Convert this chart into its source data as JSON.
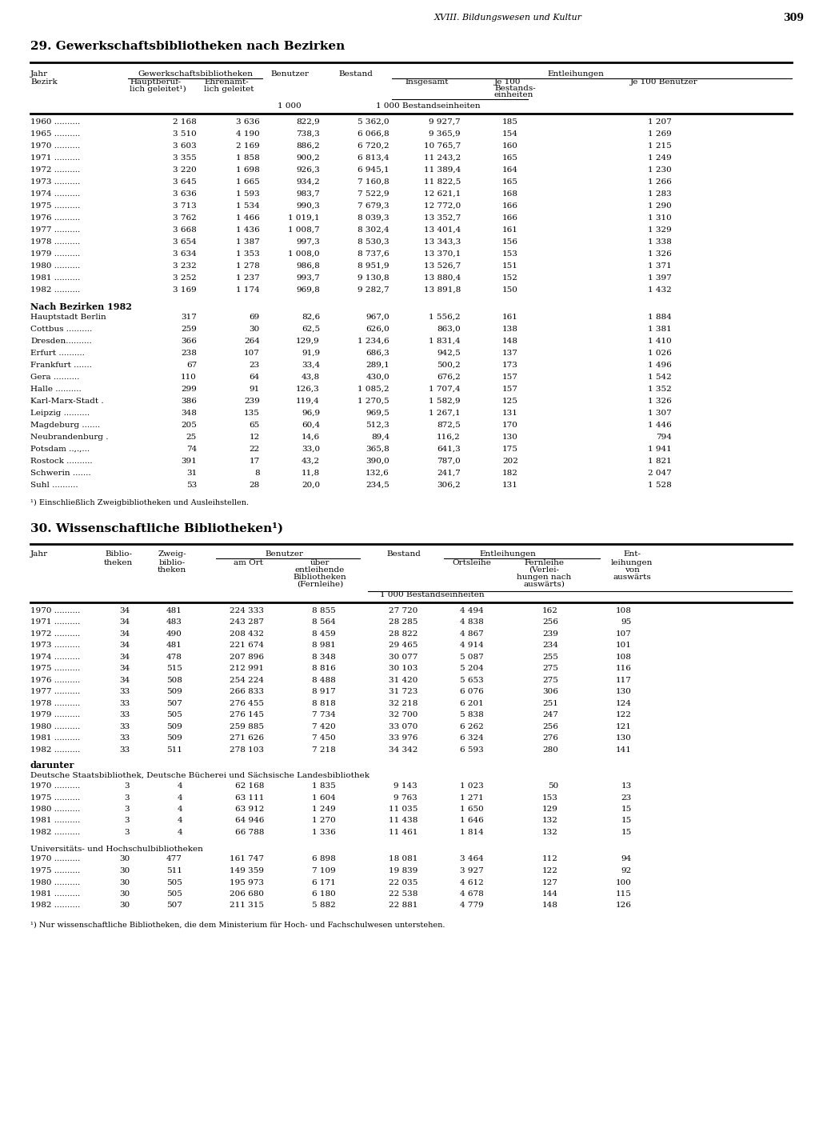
{
  "page_header": "XVIII. Bildungswesen und Kultur",
  "page_number": "309",
  "section29_title": "29. Gewerkschaftsbibliotheken nach Bezirken",
  "section30_title": "30. Wissenschaftliche Bibliotheken¹)",
  "bg_color": "#ffffff",
  "text_color": "#000000",
  "table1_years_data": [
    [
      "1960",
      "2 168",
      "3 636",
      "822,9",
      "5 362,0",
      "9 927,7",
      "185",
      "1 207"
    ],
    [
      "1965",
      "3 510",
      "4 190",
      "738,3",
      "6 066,8",
      "9 365,9",
      "154",
      "1 269"
    ],
    [
      "1970",
      "3 603",
      "2 169",
      "886,2",
      "6 720,2",
      "10 765,7",
      "160",
      "1 215"
    ],
    [
      "1971",
      "3 355",
      "1 858",
      "900,2",
      "6 813,4",
      "11 243,2",
      "165",
      "1 249"
    ],
    [
      "1972",
      "3 220",
      "1 698",
      "926,3",
      "6 945,1",
      "11 389,4",
      "164",
      "1 230"
    ],
    [
      "1973",
      "3 645",
      "1 665",
      "934,2",
      "7 160,8",
      "11 822,5",
      "165",
      "1 266"
    ],
    [
      "1974",
      "3 636",
      "1 593",
      "983,7",
      "7 522,9",
      "12 621,1",
      "168",
      "1 283"
    ],
    [
      "1975",
      "3 713",
      "1 534",
      "990,3",
      "7 679,3",
      "12 772,0",
      "166",
      "1 290"
    ],
    [
      "1976",
      "3 762",
      "1 466",
      "1 019,1",
      "8 039,3",
      "13 352,7",
      "166",
      "1 310"
    ],
    [
      "1977",
      "3 668",
      "1 436",
      "1 008,7",
      "8 302,4",
      "13 401,4",
      "161",
      "1 329"
    ],
    [
      "1978",
      "3 654",
      "1 387",
      "997,3",
      "8 530,3",
      "13 343,3",
      "156",
      "1 338"
    ],
    [
      "1979",
      "3 634",
      "1 353",
      "1 008,0",
      "8 737,6",
      "13 370,1",
      "153",
      "1 326"
    ],
    [
      "1980",
      "3 232",
      "1 278",
      "986,8",
      "8 951,9",
      "13 526,7",
      "151",
      "1 371"
    ],
    [
      "1981",
      "3 252",
      "1 237",
      "993,7",
      "9 130,8",
      "13 880,4",
      "152",
      "1 397"
    ],
    [
      "1982",
      "3 169",
      "1 174",
      "969,8",
      "9 282,7",
      "13 891,8",
      "150",
      "1 432"
    ]
  ],
  "bezirk_header": "Nach Bezirken 1982",
  "table1_bezirk_data": [
    [
      "Hauptstadt Berlin",
      "317",
      "69",
      "82,6",
      "967,0",
      "1 556,2",
      "161",
      "1 884"
    ],
    [
      "Cottbus",
      "259",
      "30",
      "62,5",
      "626,0",
      "863,0",
      "138",
      "1 381"
    ],
    [
      "Dresden",
      "366",
      "264",
      "129,9",
      "1 234,6",
      "1 831,4",
      "148",
      "1 410"
    ],
    [
      "Erfurt",
      "238",
      "107",
      "91,9",
      "686,3",
      "942,5",
      "137",
      "1 026"
    ],
    [
      "Frankfurt",
      "67",
      "23",
      "33,4",
      "289,1",
      "500,2",
      "173",
      "1 496"
    ],
    [
      "Gera",
      "110",
      "64",
      "43,8",
      "430,0",
      "676,2",
      "157",
      "1 542"
    ],
    [
      "Halle",
      "299",
      "91",
      "126,3",
      "1 085,2",
      "1 707,4",
      "157",
      "1 352"
    ],
    [
      "Karl-Marx-Stadt",
      "386",
      "239",
      "119,4",
      "1 270,5",
      "1 582,9",
      "125",
      "1 326"
    ],
    [
      "Leipzig",
      "348",
      "135",
      "96,9",
      "969,5",
      "1 267,1",
      "131",
      "1 307"
    ],
    [
      "Magdeburg",
      "205",
      "65",
      "60,4",
      "512,3",
      "872,5",
      "170",
      "1 446"
    ],
    [
      "Neubrandenburg",
      "25",
      "12",
      "14,6",
      "89,4",
      "116,2",
      "130",
      "794"
    ],
    [
      "Potsdam",
      "74",
      "22",
      "33,0",
      "365,8",
      "641,3",
      "175",
      "1 941"
    ],
    [
      "Rostock",
      "391",
      "17",
      "43,2",
      "390,0",
      "787,0",
      "202",
      "1 821"
    ],
    [
      "Schwerin",
      "31",
      "8",
      "11,8",
      "132,6",
      "241,7",
      "182",
      "2 047"
    ],
    [
      "Suhl",
      "53",
      "28",
      "20,0",
      "234,5",
      "306,2",
      "131",
      "1 528"
    ]
  ],
  "table1_footnote": "¹) Einschließlich Zweigbibliotheken und Ausleihstellen.",
  "table2_data": [
    [
      "1970",
      "34",
      "481",
      "224 333",
      "8 855",
      "27 720",
      "4 494",
      "162",
      "108"
    ],
    [
      "1971",
      "34",
      "483",
      "243 287",
      "8 564",
      "28 285",
      "4 838",
      "256",
      "95"
    ],
    [
      "1972",
      "34",
      "490",
      "208 432",
      "8 459",
      "28 822",
      "4 867",
      "239",
      "107"
    ],
    [
      "1973",
      "34",
      "481",
      "221 674",
      "8 981",
      "29 465",
      "4 914",
      "234",
      "101"
    ],
    [
      "1974",
      "34",
      "478",
      "207 896",
      "8 348",
      "30 077",
      "5 087",
      "255",
      "108"
    ],
    [
      "1975",
      "34",
      "515",
      "212 991",
      "8 816",
      "30 103",
      "5 204",
      "275",
      "116"
    ],
    [
      "1976",
      "34",
      "508",
      "254 224",
      "8 488",
      "31 420",
      "5 653",
      "275",
      "117"
    ],
    [
      "1977",
      "33",
      "509",
      "266 833",
      "8 917",
      "31 723",
      "6 076",
      "306",
      "130"
    ],
    [
      "1978",
      "33",
      "507",
      "276 455",
      "8 818",
      "32 218",
      "6 201",
      "251",
      "124"
    ],
    [
      "1979",
      "33",
      "505",
      "276 145",
      "7 734",
      "32 700",
      "5 838",
      "247",
      "122"
    ],
    [
      "1980",
      "33",
      "509",
      "259 885",
      "7 420",
      "33 070",
      "6 262",
      "256",
      "121"
    ],
    [
      "1981",
      "33",
      "509",
      "271 626",
      "7 450",
      "33 976",
      "6 324",
      "276",
      "130"
    ],
    [
      "1982",
      "33",
      "511",
      "278 103",
      "7 218",
      "34 342",
      "6 593",
      "280",
      "141"
    ]
  ],
  "table2_darunter_header": "darunter",
  "table2_dst_header": "Deutsche Staatsbibliothek, Deutsche Bücherei und Sächsische Landesbibliothek",
  "table2_dst_data": [
    [
      "1970",
      "3",
      "4",
      "62 168",
      "1 835",
      "9 143",
      "1 023",
      "50",
      "13"
    ],
    [
      "1975",
      "3",
      "4",
      "63 111",
      "1 604",
      "9 763",
      "1 271",
      "153",
      "23"
    ],
    [
      "1980",
      "3",
      "4",
      "63 912",
      "1 249",
      "11 035",
      "1 650",
      "129",
      "15"
    ],
    [
      "1981",
      "3",
      "4",
      "64 946",
      "1 270",
      "11 438",
      "1 646",
      "132",
      "15"
    ],
    [
      "1982",
      "3",
      "4",
      "66 788",
      "1 336",
      "11 461",
      "1 814",
      "132",
      "15"
    ]
  ],
  "table2_uni_header": "Universitäts- und Hochschulbibliotheken",
  "table2_uni_data": [
    [
      "1970",
      "30",
      "477",
      "161 747",
      "6 898",
      "18 081",
      "3 464",
      "112",
      "94"
    ],
    [
      "1975",
      "30",
      "511",
      "149 359",
      "7 109",
      "19 839",
      "3 927",
      "122",
      "92"
    ],
    [
      "1980",
      "30",
      "505",
      "195 973",
      "6 171",
      "22 035",
      "4 612",
      "127",
      "100"
    ],
    [
      "1981",
      "30",
      "505",
      "206 680",
      "6 180",
      "22 538",
      "4 678",
      "144",
      "115"
    ],
    [
      "1982",
      "30",
      "507",
      "211 315",
      "5 882",
      "22 881",
      "4 779",
      "148",
      "126"
    ]
  ],
  "table2_footnote": "¹) Nur wissenschaftliche Bibliotheken, die dem Ministerium für Hoch- und Fachschulwesen unterstehen."
}
